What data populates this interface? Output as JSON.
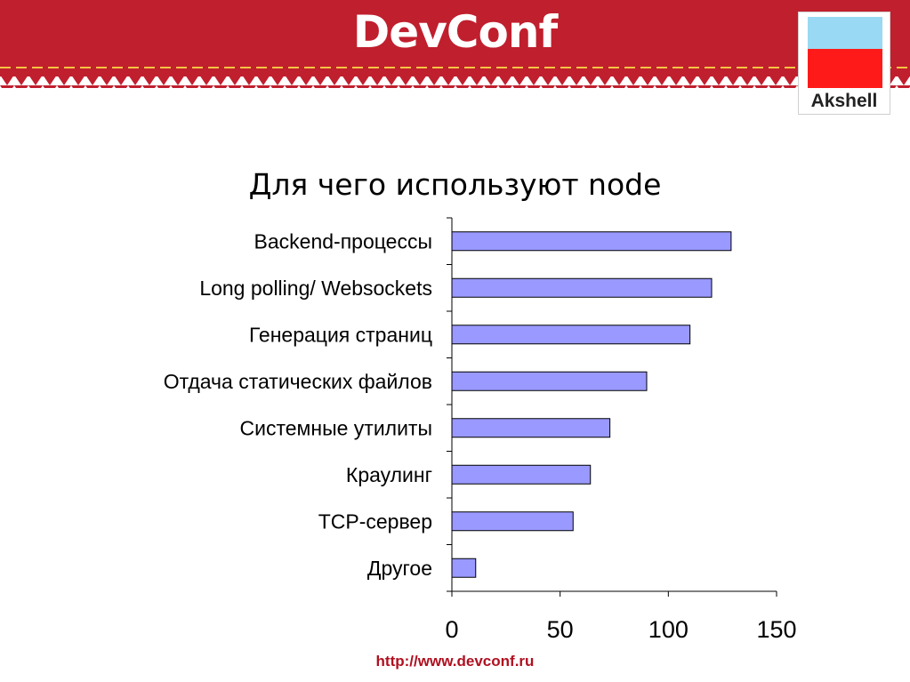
{
  "header": {
    "logo_text": "DevConf",
    "colors": {
      "band": "#c01f2e",
      "dash": "#f5c243"
    }
  },
  "sponsor": {
    "label": "Akshell"
  },
  "slide": {
    "title": "Для чего используют node"
  },
  "footer": {
    "url_prefix": "http://www.",
    "url_domain": "devconf",
    "url_suffix": ".ru"
  },
  "chart_data": {
    "type": "bar",
    "orientation": "horizontal",
    "categories": [
      "Backend-процессы",
      "Long polling/ Websockets",
      "Генерация страниц",
      "Отдача статических файлов",
      "Системные утилиты",
      "Краулинг",
      "TCP-сервер",
      "Другое"
    ],
    "values": [
      129,
      120,
      110,
      90,
      73,
      64,
      56,
      11
    ],
    "xlim": [
      0,
      150
    ],
    "xticks": [
      "0",
      "50",
      "100",
      "150"
    ],
    "bar_color": "#9999ff",
    "grid": false,
    "legend": "none"
  }
}
